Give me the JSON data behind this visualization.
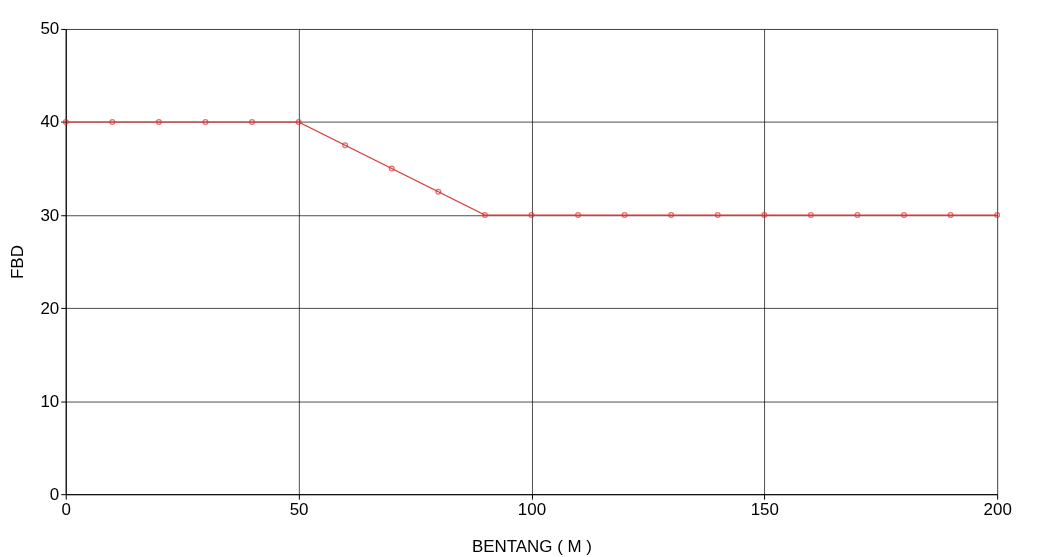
{
  "chart_data": {
    "type": "line",
    "xlabel": "BENTANG ( M )",
    "ylabel": "FBD",
    "x": [
      0,
      10,
      20,
      30,
      40,
      50,
      60,
      70,
      80,
      90,
      100,
      110,
      120,
      130,
      140,
      150,
      160,
      170,
      180,
      190,
      200
    ],
    "series": [
      {
        "color": "#e0302f",
        "values": [
          40,
          40,
          40,
          40,
          40,
          40,
          37.5,
          35,
          32.5,
          30,
          30,
          30,
          30,
          30,
          30,
          30,
          30,
          30,
          30,
          30,
          30
        ]
      }
    ],
    "xlim": [
      0,
      200
    ],
    "xticks": [
      0,
      50,
      100,
      150,
      200
    ],
    "ylim": [
      0,
      50
    ],
    "yticks": [
      0,
      10,
      20,
      30,
      40,
      50
    ],
    "grid": true,
    "marker": "circle",
    "line_style": "solid"
  }
}
